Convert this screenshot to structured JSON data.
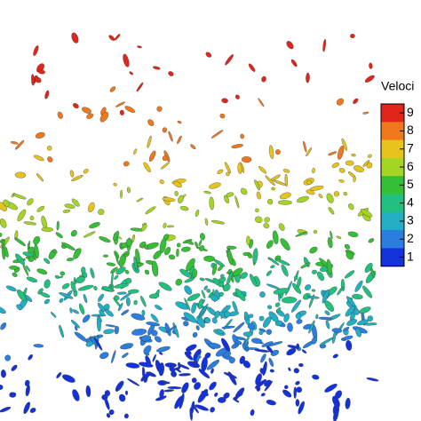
{
  "colorbar": {
    "title": "Veloci",
    "labels": [
      9,
      8,
      7,
      6,
      5,
      4,
      3,
      2,
      1
    ],
    "colors": [
      "#e0261b",
      "#f0781c",
      "#e6c41c",
      "#a6d422",
      "#34bf34",
      "#22c07e",
      "#22aec4",
      "#2a7ee0",
      "#1432dc"
    ]
  }
}
